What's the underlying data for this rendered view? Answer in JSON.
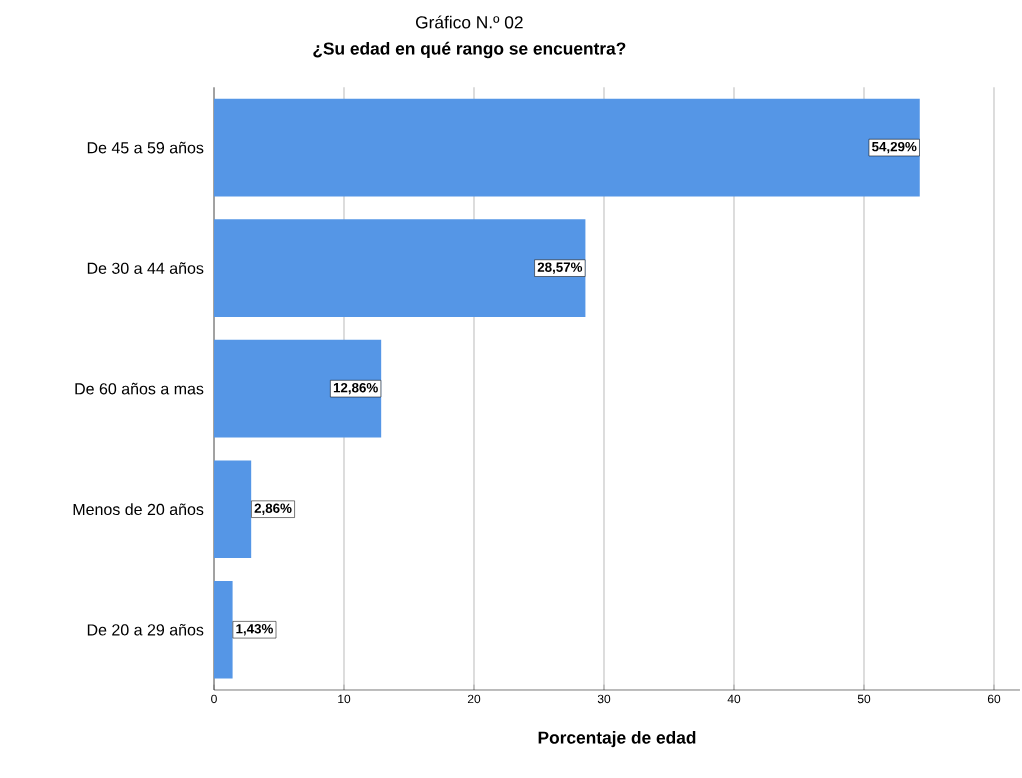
{
  "chart_data": {
    "type": "bar",
    "orientation": "horizontal",
    "title": "Gráfico N.º 02",
    "subtitle": "¿Su edad en qué rango se encuentra?",
    "xlabel": "Porcentaje de edad",
    "categories": [
      "De 45 a 59 años",
      "De 30 a 44 años",
      "De 60 años a mas",
      "Menos de 20 años",
      "De 20 a 29 años"
    ],
    "values": [
      54.29,
      28.57,
      12.86,
      2.86,
      1.43
    ],
    "value_labels": [
      "54,29%",
      "28,57%",
      "12,86%",
      "2,86%",
      "1,43%"
    ],
    "color": "#5596e6",
    "xlim": [
      0,
      62
    ],
    "xticks": [
      0,
      10,
      20,
      30,
      40,
      50,
      60
    ],
    "grid": "x"
  }
}
